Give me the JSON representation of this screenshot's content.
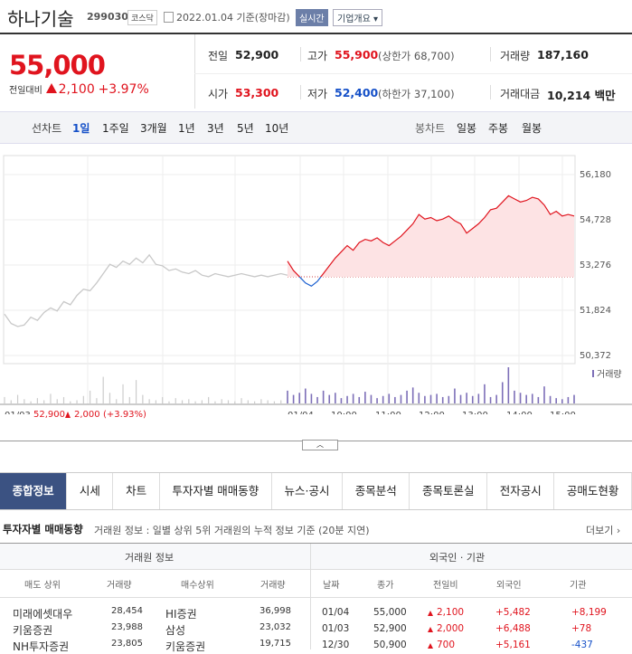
{
  "header": {
    "name": "하나기술",
    "code": "299030",
    "market": "코스닥",
    "date": "2022.01.04",
    "basis": "기준(장마감)",
    "realtime": "실시간",
    "company": "기업개요"
  },
  "price": {
    "current": "55,000",
    "change_label": "전일대비",
    "change": "2,100",
    "change_pct": "+3.97%"
  },
  "stats": [
    [
      {
        "label": "전일",
        "value": "52,900"
      },
      {
        "label": "고가",
        "value": "55,900",
        "note": "(상한가 68,700)"
      },
      {
        "label": "거래량",
        "value": "187,160"
      }
    ],
    [
      {
        "label": "시가",
        "value": "53,300"
      },
      {
        "label": "저가",
        "value": "52,400",
        "note": "(하한가 37,100)"
      },
      {
        "label": "거래대금",
        "value": "10,214 백만"
      }
    ]
  ],
  "chart_tabs": {
    "line_label": "선차트",
    "line": [
      "1일",
      "1주일",
      "3개월",
      "1년",
      "3년",
      "5년",
      "10년"
    ],
    "candle_label": "봉차트",
    "candle": [
      "일봉",
      "주봉",
      "월봉"
    ]
  },
  "chart_data": {
    "type": "line",
    "ylim": [
      50372,
      56180
    ],
    "yticks": [
      {
        "value": 50372,
        "label": "50,372"
      },
      {
        "value": 51824,
        "label": "51,824"
      },
      {
        "value": 53276,
        "label": "53,276"
      },
      {
        "value": 54728,
        "label": "54,728"
      },
      {
        "value": 56180,
        "label": "56,180"
      }
    ],
    "base": 52900,
    "prev_values": [
      51700,
      51400,
      51300,
      51350,
      51600,
      51500,
      51750,
      51900,
      51800,
      52100,
      52000,
      52300,
      52500,
      52450,
      52700,
      53000,
      53300,
      53200,
      53400,
      53300,
      53500,
      53350,
      53600,
      53300,
      53250,
      53100,
      53150,
      53050,
      53000,
      53100,
      52950,
      52900,
      53000,
      52950,
      52900,
      52950,
      53000,
      52950,
      52900,
      52950,
      52900,
      52950,
      53000,
      52950
    ],
    "values": [
      53400,
      53100,
      52900,
      52700,
      52600,
      52750,
      53000,
      53250,
      53500,
      53700,
      53900,
      53750,
      54000,
      54100,
      54050,
      54150,
      54000,
      53900,
      54050,
      54200,
      54400,
      54600,
      54900,
      54750,
      54800,
      54700,
      54750,
      54850,
      54700,
      54600,
      54300,
      54450,
      54600,
      54800,
      55050,
      55100,
      55300,
      55500,
      55400,
      55300,
      55350,
      55450,
      55400,
      55200,
      54900,
      55000,
      54850,
      54900,
      54850
    ],
    "volume_label": "거래량",
    "prev_volume": [
      6,
      3,
      8,
      4,
      2,
      5,
      3,
      9,
      4,
      6,
      2,
      3,
      7,
      12,
      5,
      25,
      10,
      4,
      18,
      6,
      22,
      8,
      4,
      3,
      6,
      2,
      5,
      3,
      4,
      2,
      3,
      6,
      2,
      4,
      3,
      2,
      5,
      3,
      2,
      4,
      3,
      2,
      3,
      6
    ],
    "volume": [
      12,
      8,
      10,
      14,
      9,
      6,
      12,
      8,
      10,
      5,
      7,
      9,
      6,
      11,
      8,
      5,
      7,
      9,
      6,
      8,
      12,
      15,
      10,
      7,
      8,
      9,
      6,
      7,
      14,
      8,
      10,
      7,
      9,
      18,
      6,
      8,
      20,
      34,
      12,
      10,
      8,
      9,
      6,
      16,
      7,
      5,
      4,
      6,
      8
    ],
    "x_labels": [
      "01/03",
      "01/04",
      "10:00",
      "11:00",
      "12:00",
      "13:00",
      "14:00",
      "15:00"
    ],
    "footer": {
      "date": "01/03",
      "close": "52,900",
      "change": "2,000",
      "pct": "(+3.93%)"
    }
  },
  "nav": [
    "종합정보",
    "시세",
    "차트",
    "투자자별 매매동향",
    "뉴스·공시",
    "종목분석",
    "종목토론실",
    "전자공시",
    "공매도현황"
  ],
  "section": {
    "title": "투자자별 매매동향",
    "desc": "거래원 정보 : 일별 상위 5위 거래원의 누적 정보 기준 (20분 지연)",
    "more": "더보기"
  },
  "table": {
    "left_title": "거래원 정보",
    "right_title": "외국인 · 기관",
    "left_cols": [
      "매도 상위",
      "거래량",
      "매수상위",
      "거래량"
    ],
    "right_cols": [
      "날짜",
      "종가",
      "전일비",
      "외국인",
      "기관"
    ],
    "left_rows": [
      [
        "미래에셋대우",
        "28,454",
        "HI증권",
        "36,998"
      ],
      [
        "키움증권",
        "23,988",
        "삼성",
        "23,032"
      ],
      [
        "NH투자증권",
        "23,805",
        "키움증권",
        "19,715"
      ]
    ],
    "right_rows": [
      [
        "01/04",
        "55,000",
        "2,100",
        "+5,482",
        "+8,199"
      ],
      [
        "01/03",
        "52,900",
        "2,000",
        "+6,488",
        "+78"
      ],
      [
        "12/30",
        "50,900",
        "700",
        "+5,161",
        "-437"
      ]
    ]
  }
}
